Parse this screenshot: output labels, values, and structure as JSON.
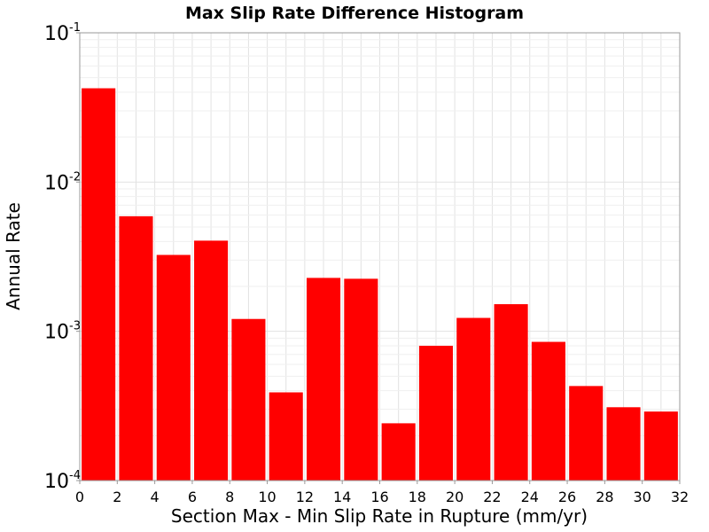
{
  "chart_data": {
    "type": "bar",
    "title": "Max Slip Rate Difference Histogram",
    "xlabel": "Section Max - Min Slip Rate in Rupture (mm/yr)",
    "ylabel": "Annual Rate",
    "xlim": [
      0,
      32
    ],
    "ylim": [
      0.0001,
      0.1
    ],
    "y_scale": "log",
    "grid": true,
    "bar_color": "#ff0000",
    "bar_width": 1.8,
    "x_ticks": [
      "0",
      "2",
      "4",
      "6",
      "8",
      "10",
      "12",
      "14",
      "16",
      "18",
      "20",
      "22",
      "24",
      "26",
      "28",
      "30",
      "32"
    ],
    "y_ticks": [
      {
        "base": "10",
        "exp": "-1",
        "value": 0.1
      },
      {
        "base": "10",
        "exp": "-2",
        "value": 0.01
      },
      {
        "base": "10",
        "exp": "-3",
        "value": 0.001
      },
      {
        "base": "10",
        "exp": "-4",
        "value": 0.0001
      }
    ],
    "x": [
      1,
      3,
      5,
      7,
      9,
      11,
      13,
      15,
      17,
      19,
      21,
      23,
      25,
      27,
      29,
      31
    ],
    "values": [
      0.0425,
      0.0059,
      0.00325,
      0.00405,
      0.00121,
      0.00039,
      0.00228,
      0.00225,
      0.000242,
      0.0008,
      0.00123,
      0.00152,
      0.00085,
      0.00043,
      0.00031,
      0.00029
    ]
  }
}
